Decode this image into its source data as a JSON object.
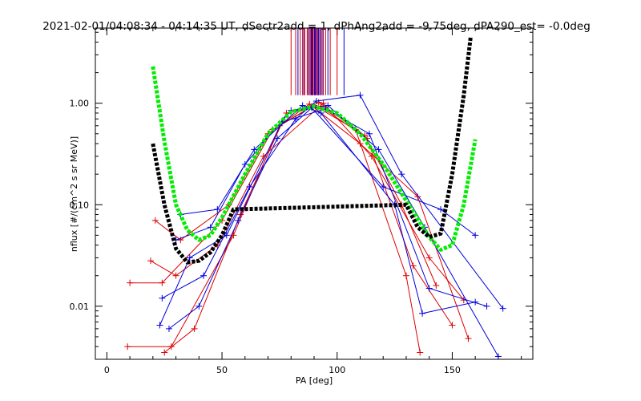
{
  "chart_data": {
    "type": "line",
    "title": "2021-02-01/04:08:34 - 04:14:35 UT, dSectr2add = 1, dPhAng2add = -9.75deg, dPA290_est=  -0.0deg",
    "xlabel": "PA [deg]",
    "ylabel": "nflux [#/(cm^2 s sr MeV)]",
    "xlim": [
      -5,
      185
    ],
    "ylim": [
      0.003,
      5.5
    ],
    "yscale": "log",
    "xticks": [
      0,
      50,
      100,
      150
    ],
    "xtick_labels": [
      "0",
      "50",
      "100",
      "150"
    ],
    "yticks": [
      0.01,
      0.1,
      1.0
    ],
    "ytick_labels": [
      "0.01",
      "0.10",
      "1.00"
    ],
    "colors": {
      "red_series": "#dd0000",
      "blue_series": "#0000dd",
      "green_fit": "#00ee00",
      "black_fit": "#000000",
      "axis": "#000000"
    },
    "series": [
      {
        "name": "red-sample-1",
        "color": "#dd0000",
        "x": [
          10,
          24,
          50,
          72,
          92,
          112,
          128,
          143
        ],
        "y": [
          0.017,
          0.017,
          0.07,
          0.55,
          1.02,
          0.48,
          0.1,
          0.016
        ]
      },
      {
        "name": "red-sample-2",
        "color": "#dd0000",
        "x": [
          9,
          28,
          55,
          75,
          90,
          108,
          130,
          136
        ],
        "y": [
          0.004,
          0.004,
          0.05,
          0.6,
          0.95,
          0.55,
          0.02,
          0.0035
        ]
      },
      {
        "name": "red-sample-3",
        "color": "#dd0000",
        "x": [
          21,
          32,
          53,
          70,
          88,
          110,
          135,
          157
        ],
        "y": [
          0.07,
          0.045,
          0.1,
          0.5,
          0.98,
          0.4,
          0.12,
          0.0048
        ]
      },
      {
        "name": "red-sample-4",
        "color": "#dd0000",
        "x": [
          19,
          30,
          48,
          68,
          94,
          115,
          140,
          155
        ],
        "y": [
          0.028,
          0.02,
          0.04,
          0.3,
          1.0,
          0.3,
          0.03,
          0.0115
        ]
      },
      {
        "name": "red-sample-5",
        "color": "#dd0000",
        "x": [
          25,
          38,
          58,
          78,
          93,
          113,
          133,
          150
        ],
        "y": [
          0.0035,
          0.006,
          0.08,
          0.8,
          0.92,
          0.45,
          0.025,
          0.0065
        ]
      },
      {
        "name": "blue-sample-1",
        "color": "#0000dd",
        "x": [
          30,
          45,
          60,
          80,
          96,
          118,
          138,
          170
        ],
        "y": [
          0.045,
          0.06,
          0.25,
          0.85,
          0.95,
          0.35,
          0.06,
          0.0032
        ]
      },
      {
        "name": "blue-sample-2",
        "color": "#0000dd",
        "x": [
          24,
          42,
          62,
          82,
          91,
          110,
          128,
          172
        ],
        "y": [
          0.012,
          0.02,
          0.15,
          0.7,
          1.05,
          1.2,
          0.2,
          0.0095
        ]
      },
      {
        "name": "blue-sample-3",
        "color": "#0000dd",
        "x": [
          27,
          40,
          57,
          74,
          89,
          120,
          145,
          160
        ],
        "y": [
          0.006,
          0.01,
          0.07,
          0.45,
          0.9,
          0.15,
          0.09,
          0.05
        ]
      },
      {
        "name": "blue-sample-4",
        "color": "#0000dd",
        "x": [
          23,
          36,
          52,
          76,
          95,
          114,
          140,
          165
        ],
        "y": [
          0.0065,
          0.03,
          0.05,
          0.65,
          0.88,
          0.5,
          0.015,
          0.01
        ]
      },
      {
        "name": "blue-sample-5",
        "color": "#0000dd",
        "x": [
          32,
          48,
          64,
          85,
          93,
          125,
          137,
          160
        ],
        "y": [
          0.08,
          0.09,
          0.35,
          0.95,
          0.8,
          0.1,
          0.0085,
          0.011
        ]
      }
    ],
    "fits": [
      {
        "name": "green-fit",
        "color": "#00ee00",
        "x": [
          20,
          25,
          30,
          35,
          40,
          45,
          50,
          60,
          70,
          80,
          90,
          100,
          110,
          120,
          130,
          140,
          145,
          150,
          155,
          160
        ],
        "y": [
          2.3,
          0.42,
          0.1,
          0.056,
          0.045,
          0.05,
          0.075,
          0.2,
          0.5,
          0.82,
          0.93,
          0.8,
          0.5,
          0.25,
          0.11,
          0.048,
          0.036,
          0.04,
          0.1,
          0.44
        ]
      },
      {
        "name": "black-fit",
        "color": "#000000",
        "x": [
          20,
          25,
          30,
          35,
          40,
          45,
          50,
          55,
          130,
          135,
          140,
          145,
          150,
          155,
          158
        ],
        "y": [
          0.4,
          0.1,
          0.037,
          0.027,
          0.028,
          0.034,
          0.05,
          0.09,
          0.1,
          0.06,
          0.048,
          0.052,
          0.2,
          1.2,
          4.5
        ]
      }
    ],
    "top_markers": {
      "red": [
        80,
        82,
        84,
        85,
        86,
        87,
        88,
        88.5,
        89,
        89.5,
        90,
        90.5,
        91,
        91.5,
        92,
        93,
        94,
        95,
        97,
        100
      ],
      "blue": [
        83,
        85.5,
        87.5,
        88.8,
        89.3,
        90.2,
        90.8,
        91.8,
        92.5,
        93.5,
        96,
        103
      ]
    }
  }
}
